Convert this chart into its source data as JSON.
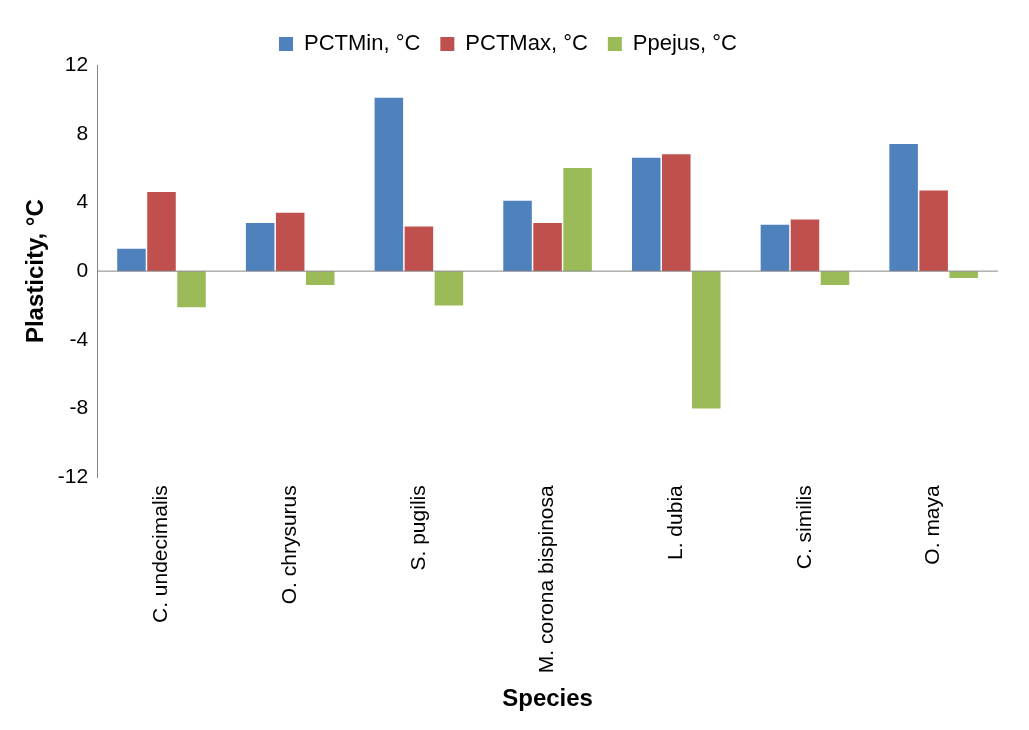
{
  "chart_data": {
    "type": "bar",
    "xlabel": "Species",
    "ylabel": "Plasticity, °C",
    "categories": [
      "C. undecimalis",
      "O. chrysurus",
      "S. pugilis",
      "M. corona bispinosa",
      "L. dubia",
      "C. similis",
      "O. maya"
    ],
    "series": [
      {
        "name": "PCTMin, °C",
        "color": "#4f81bd",
        "values": [
          1.3,
          2.8,
          10.1,
          4.1,
          6.6,
          2.7,
          7.4
        ]
      },
      {
        "name": "PCTMax, °C",
        "color": "#c0504d",
        "values": [
          4.6,
          3.4,
          2.6,
          2.8,
          6.8,
          3.0,
          4.7
        ]
      },
      {
        "name": "Ppejus, °C",
        "color": "#9bbb59",
        "values": [
          -2.1,
          -0.8,
          -2.0,
          6.0,
          -8.0,
          -0.8,
          -0.4
        ]
      }
    ],
    "ylim": [
      -12,
      12
    ],
    "yticks": [
      -12,
      -8,
      -4,
      0,
      4,
      8,
      12
    ],
    "grid": false,
    "legend": "top",
    "ref_lines": [
      {
        "axis": "y",
        "value": 0,
        "color": "#868686"
      }
    ]
  }
}
